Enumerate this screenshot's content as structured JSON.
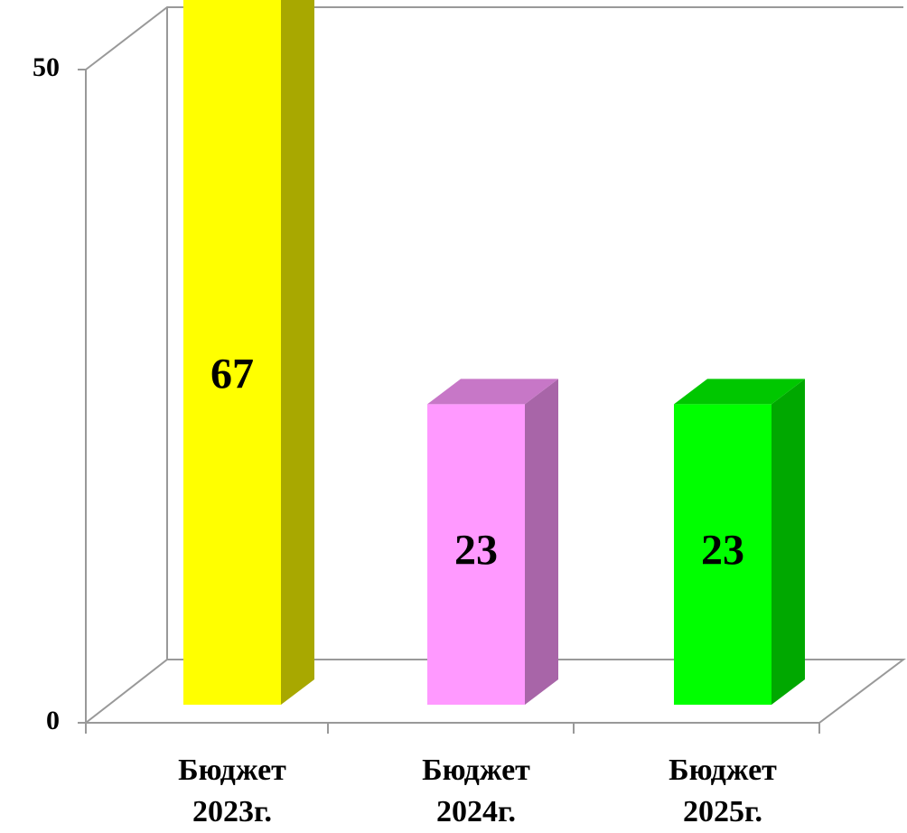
{
  "chart_data": {
    "type": "bar3d",
    "categories": [
      "Бюджет 2023г.",
      "Бюджет 2024г.",
      "Бюджет 2025г."
    ],
    "values": [
      67,
      23,
      23
    ],
    "colors": [
      "#ffff00",
      "#ff99ff",
      "#00ff00"
    ],
    "ylim": [
      0,
      50
    ],
    "yticks": [
      0,
      50
    ]
  }
}
